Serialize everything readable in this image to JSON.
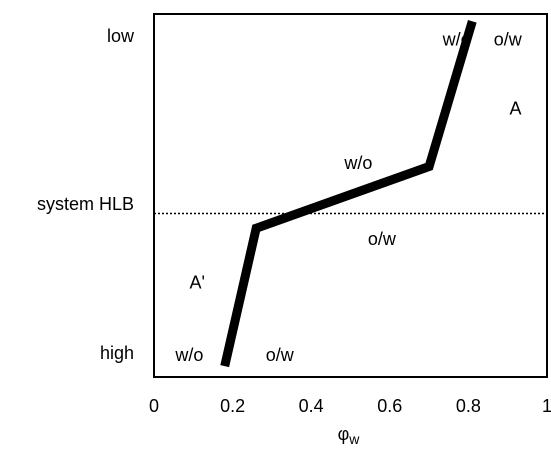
{
  "chart_data": {
    "type": "line",
    "title": "",
    "xlabel_main": "φ",
    "xlabel_sub": "w",
    "xlim": [
      0,
      1
    ],
    "x_ticks": [
      {
        "value": 0,
        "label": "0"
      },
      {
        "value": 0.2,
        "label": "0.2"
      },
      {
        "value": 0.4,
        "label": "0.4"
      },
      {
        "value": 0.6,
        "label": "0.6"
      },
      {
        "value": 0.8,
        "label": "0.8"
      },
      {
        "value": 1,
        "label": "1"
      }
    ],
    "y_scale": "HLB (low at top, high at bottom)",
    "y_ticks": [
      {
        "label": "low",
        "position": "top"
      },
      {
        "label": "system HLB",
        "position": "middle"
      },
      {
        "label": "high",
        "position": "bottom"
      }
    ],
    "reference_line": {
      "label": "system HLB",
      "y": 0.5,
      "style": "dotted"
    },
    "series": [
      {
        "points": [
          {
            "x": 0.18,
            "y": 0.03
          },
          {
            "x": 0.26,
            "y": 0.41
          },
          {
            "x": 0.7,
            "y": 0.58
          },
          {
            "x": 0.81,
            "y": 0.98
          }
        ]
      }
    ],
    "region_labels": [
      {
        "text": "w/o",
        "x": 0.77,
        "y": 0.93
      },
      {
        "text": "o/w",
        "x": 0.9,
        "y": 0.93
      },
      {
        "text": "A",
        "x": 0.92,
        "y": 0.74
      },
      {
        "text": "w/o",
        "x": 0.52,
        "y": 0.59
      },
      {
        "text": "o/w",
        "x": 0.58,
        "y": 0.38
      },
      {
        "text": "A'",
        "x": 0.11,
        "y": 0.26
      },
      {
        "text": "w/o",
        "x": 0.09,
        "y": 0.06
      },
      {
        "text": "o/w",
        "x": 0.32,
        "y": 0.06
      }
    ],
    "grid": false,
    "legend": "none"
  }
}
